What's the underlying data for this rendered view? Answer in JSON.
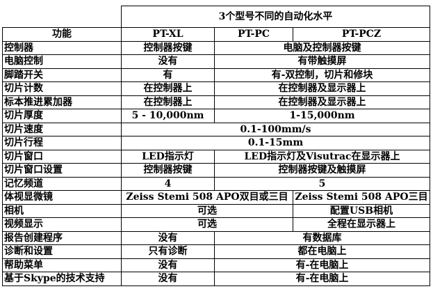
{
  "title": "3个型号不同的自动化水平",
  "header": [
    "功能",
    "PT-XL",
    "PT-PC",
    "PT-PCZ"
  ],
  "rows": [
    {
      "label": "控制器",
      "cells": [
        {
          "text": "控制器按键",
          "span": 1
        },
        {
          "text": "电脑及控制器按键",
          "span": 2
        }
      ]
    },
    {
      "label": "电脑控制",
      "cells": [
        {
          "text": "没有",
          "span": 1
        },
        {
          "text": "有带触摸屏",
          "span": 2
        }
      ]
    },
    {
      "label": "脚踏开关",
      "cells": [
        {
          "text": "有",
          "span": 1
        },
        {
          "text": "有-双控制，切片和修块",
          "span": 2
        }
      ]
    },
    {
      "label": "切片计数",
      "cells": [
        {
          "text": "在控制器上",
          "span": 1
        },
        {
          "text": "在控制器及显示器上",
          "span": 2
        }
      ]
    },
    {
      "label": "标本推进累加器",
      "cells": [
        {
          "text": "在控制器上",
          "span": 1
        },
        {
          "text": "在控制器及显示器上",
          "span": 2
        }
      ]
    },
    {
      "label": "切片厚度",
      "cells": [
        {
          "text": "5 - 10,000nm",
          "span": 1
        },
        {
          "text": "1-15,000nm",
          "span": 2
        }
      ]
    },
    {
      "label": "切片速度",
      "cells": [
        {
          "text": "0.1-100mm/s",
          "span": 3
        }
      ]
    },
    {
      "label": "切片行程",
      "cells": [
        {
          "text": "0.1-15mm",
          "span": 3
        }
      ]
    },
    {
      "label": "切片窗口",
      "cells": [
        {
          "text": "LED指示灯",
          "span": 1
        },
        {
          "text": "LED指示灯及Visutrac在显示器上",
          "span": 2
        }
      ]
    },
    {
      "label": "切片窗口设置",
      "cells": [
        {
          "text": "控制器按键",
          "span": 1
        },
        {
          "text": "控制器按键及触摸屏",
          "span": 2
        }
      ]
    },
    {
      "label": "记忆频道",
      "cells": [
        {
          "text": "4",
          "span": 1
        },
        {
          "text": "5",
          "span": 2
        }
      ]
    },
    {
      "label": "体视显微镜",
      "cells": [
        {
          "text": "Zeiss Stemi 508 APO双目或三目",
          "span": 2
        },
        {
          "text": "Zeiss Stemi 508 APO三目",
          "span": 1
        }
      ]
    },
    {
      "label": "相机",
      "cells": [
        {
          "text": "可选",
          "span": 2
        },
        {
          "text": "配置USB相机",
          "span": 1
        }
      ]
    },
    {
      "label": "视频显示",
      "cells": [
        {
          "text": "可选",
          "span": 2
        },
        {
          "text": "全程在显示器上",
          "span": 1
        }
      ]
    },
    {
      "label": "报告创建程序",
      "cells": [
        {
          "text": "没有",
          "span": 1
        },
        {
          "text": "有数据库",
          "span": 2
        }
      ]
    },
    {
      "label": "诊断和设置",
      "cells": [
        {
          "text": "只有诊断",
          "span": 1
        },
        {
          "text": "都在电脑上",
          "span": 2
        }
      ]
    },
    {
      "label": "帮助菜单",
      "cells": [
        {
          "text": "没有",
          "span": 1
        },
        {
          "text": "有-在电脑上",
          "span": 2
        }
      ]
    },
    {
      "label": "基于Skype的技术支持",
      "cells": [
        {
          "text": "没有",
          "span": 1
        },
        {
          "text": "有-在电脑上",
          "span": 2
        }
      ]
    }
  ]
}
